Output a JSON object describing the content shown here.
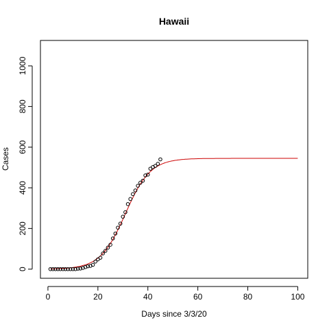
{
  "chart_data": {
    "type": "scatter",
    "title": "Hawaii",
    "xlabel": "Days since 3/3/20",
    "ylabel": "Cases",
    "xlim": [
      -3.0,
      104.0
    ],
    "ylim": [
      -45.0,
      1125.0
    ],
    "x_ticks": [
      0,
      20,
      40,
      60,
      80,
      100
    ],
    "y_ticks": [
      0,
      200,
      400,
      600,
      800,
      1000
    ],
    "x_tick_labels": [
      "0",
      "20",
      "40",
      "60",
      "80",
      "100"
    ],
    "y_tick_labels": [
      "0",
      "200",
      "400",
      "600",
      "800",
      "1000"
    ],
    "grid": false,
    "series": [
      {
        "kind": "points",
        "color": "#000000",
        "marker": "open-circle",
        "x": [
          1,
          2,
          3,
          4,
          5,
          6,
          7,
          8,
          9,
          10,
          11,
          12,
          13,
          14,
          15,
          16,
          17,
          18,
          19,
          20,
          21,
          22,
          23,
          24,
          25,
          26,
          27,
          28,
          29,
          30,
          31,
          32,
          33,
          34,
          35,
          36,
          37,
          38,
          39,
          40,
          41,
          42,
          43,
          44,
          45
        ],
        "y": [
          0,
          0,
          0,
          0,
          0,
          0,
          0,
          0,
          0,
          0,
          0,
          2,
          3,
          6,
          10,
          14,
          16,
          21,
          37,
          48,
          56,
          77,
          90,
          106,
          120,
          151,
          175,
          204,
          224,
          258,
          280,
          320,
          345,
          369,
          387,
          410,
          425,
          435,
          461,
          465,
          494,
          502,
          508,
          518,
          540
        ]
      },
      {
        "kind": "fit-line",
        "color": "#cc0000",
        "logistic": {
          "K": 545,
          "r": 0.2,
          "x0": 31,
          "start": 1,
          "end": 100
        }
      }
    ]
  }
}
